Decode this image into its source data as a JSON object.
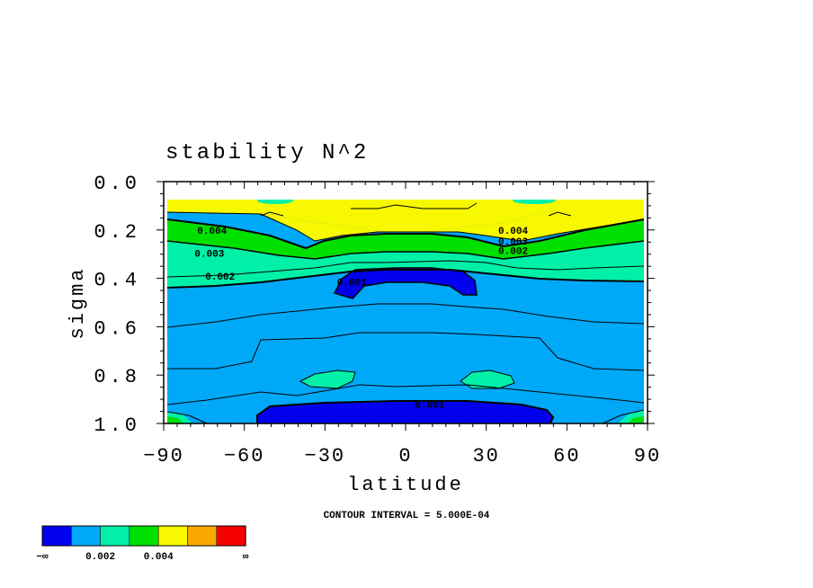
{
  "chart_data": {
    "type": "heatmap",
    "title": "stability N^2",
    "xlabel": "latitude",
    "ylabel": "sigma",
    "xlim": [
      -90,
      90
    ],
    "ylim": [
      0.0,
      1.0
    ],
    "y_inverted": true,
    "x_ticks": [
      -90,
      -60,
      -30,
      0,
      30,
      60,
      90
    ],
    "x_tick_labels": [
      "−90",
      "−60",
      "−30",
      "0",
      "30",
      "60",
      "90"
    ],
    "y_ticks": [
      0.0,
      0.2,
      0.4,
      0.6,
      0.8,
      1.0
    ],
    "y_tick_labels": [
      "0.0",
      "0.2",
      "0.4",
      "0.6",
      "0.8",
      "1.0"
    ],
    "contour_interval_text": "CONTOUR INTERVAL = 5.000E-04",
    "contour_labels": [
      {
        "text": "0.004",
        "lat": -72,
        "sigma": 0.2
      },
      {
        "text": "0.003",
        "lat": -73,
        "sigma": 0.295
      },
      {
        "text": "0.002",
        "lat": -69,
        "sigma": 0.39
      },
      {
        "text": "0.001",
        "lat": -20,
        "sigma": 0.415
      },
      {
        "text": "0.004",
        "lat": 40,
        "sigma": 0.2
      },
      {
        "text": "0.003",
        "lat": 40,
        "sigma": 0.245
      },
      {
        "text": "0.002",
        "lat": 40,
        "sigma": 0.285
      },
      {
        "text": "0.001",
        "lat": 9,
        "sigma": 0.92
      }
    ],
    "colorbar": {
      "colors": [
        "#0000ee",
        "#00a8f8",
        "#00f0a8",
        "#00e000",
        "#f8f800",
        "#f8a800",
        "#f80000"
      ],
      "labels": [
        "−∞",
        "0.002",
        "0.004",
        "∞"
      ]
    }
  }
}
